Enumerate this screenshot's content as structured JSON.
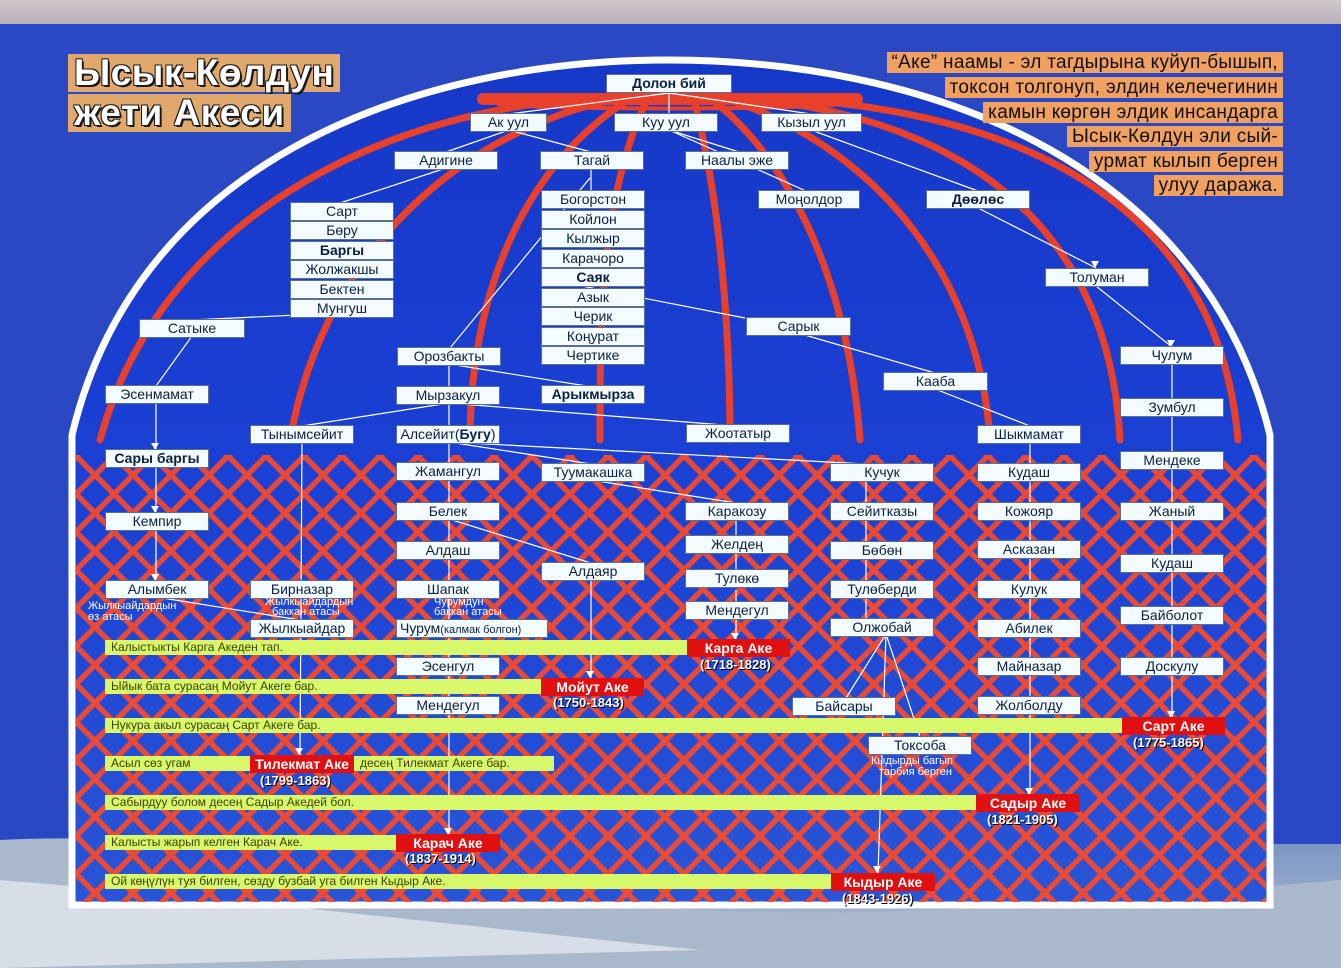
{
  "title": {
    "line1": "Ысык-Көлдун",
    "line2": "жети Акеси"
  },
  "quote": [
    "“Аке” наамы - эл тагдырына куйуп-бышып,",
    "токсон толгонуп, элдин келечегинин",
    "камын көргөн элдик инсандарга",
    "Ысык-Көлдун эли сый-",
    "урмат кылып берген",
    "улуу даража."
  ],
  "colors": {
    "lattice": "#ff3a1a",
    "node_bg": "#f4fbff",
    "saying_bg": "#d6f86a",
    "ake_bg": "#e01010"
  },
  "nodes": {
    "dolon": "Долон бий",
    "ak_uul": "Ак уул",
    "kuu_uul": "Куу уул",
    "kyzyl_uul": "Кызыл уул",
    "adigine": "Адигине",
    "tagai": "Тагай",
    "naaly": "Наалы эже",
    "monoldor": "Моңолдор",
    "doolos": "Дөөлөс",
    "sart": "Сарт",
    "boru": "Бөру",
    "bargy": "Баргы",
    "zholzhakshy": "Жолжакшы",
    "bekten": "Бектен",
    "mungush": "Мунгуш",
    "bogorston": "Богорстон",
    "koilon": "Койлон",
    "kylzhyr": "Кылжыр",
    "karachoro": "Карачоро",
    "sayak": "Саяк",
    "azyk": "Азык",
    "cherik": "Черик",
    "konurat": "Коңурат",
    "chertike": "Чертике",
    "tolumaN": "Толуман",
    "satyke": "Сатыке",
    "saryk": "Сарык",
    "orozbakty": "Орозбакты",
    "chulum": "Чулум",
    "kaaba": "Кааба",
    "esenmamat": "Эсенмамат",
    "myrzakul": "Мырзакул",
    "arykmyrza": "Арыкмырза",
    "zumbul": "Зумбул",
    "tynymseit": "Тынымсейит",
    "alseit_a": "Алсейит(",
    "alseit_b": "Бугу",
    "alseit_c": ")",
    "zhootatyr": "Жоотатыр",
    "shykmamat": "Шыкмамат",
    "sary_bargy": "Сары баргы",
    "mendeke": "Мендеке",
    "zhamangul": "Жамангул",
    "tuumakashka": "Туумакашка",
    "kuchuk": "Кучук",
    "kudash1": "Кудаш",
    "kempir": "Кемпир",
    "belek": "Белек",
    "karakozu": "Каракозу",
    "seitkazy": "Сейитказы",
    "kozhoyar": "Кожояр",
    "zhanyy": "Жаный",
    "aldash": "Алдаш",
    "zhelden": "Желдең",
    "boben": "Бөбөн",
    "askazan": "Асказан",
    "kudash2": "Кудаш",
    "aldayar": "Алдаяр",
    "tuleko": "Тулөкө",
    "alymbek": "Алымбек",
    "birnazar": "Бирназар",
    "shapak": "Шапак",
    "tuloberdi": "Тулөберди",
    "kuluk": "Кулук",
    "mendegul1": "Мендегул",
    "baibolot": "Байболот",
    "zhylkyaidar": "Жылкыайдар",
    "churum_a": "Чурум",
    "churum_b": "(калмак болгон)",
    "olzhobai": "Олжобай",
    "abilek": "Абилек",
    "esengul": "Эсенгул",
    "mainazar": "Майназар",
    "doskulu": "Доскулу",
    "mendegul2": "Мендегул",
    "baisary": "Байсары",
    "zholboldu": "Жолболду",
    "toksoba": "Токсоба"
  },
  "notes": {
    "alymbek_1": "Жылкыайдардын",
    "alymbek_2": "өз атасы",
    "birnazar_1": "Жылкыайдардын",
    "birnazar_2": "баккан атасы",
    "shapak_1": "Чурумдун",
    "shapak_2": "баккан атасы",
    "toksoba_1": "Кыдырды багып",
    "toksoba_2": "тарбия берген"
  },
  "sayings": [
    {
      "text": "Калыстыкты Карга Акеден тап.",
      "ake": "Карга Аке",
      "years": "(1718-1828)"
    },
    {
      "text": "Ыйык бата сурасаң Мойут Акеге бар.",
      "ake": "Мойут Аке",
      "years": "(1750-1843)"
    },
    {
      "text": "Нукура акыл сурасаң Сарт Акеге бар.",
      "ake": "Сарт Аке",
      "years": "(1775-1865)"
    },
    {
      "text": "Асыл сөз угам",
      "ake": "Тилекмат Аке",
      "years": "(1799-1863)",
      "text2": "десең Тилекмат Акеге бар."
    },
    {
      "text": "Сабырдуу болом десең Садыр Акедей бол.",
      "ake": "Садыр Аке",
      "years": "(1821-1905)"
    },
    {
      "text": "Калысты жарып келген Карач Аке.",
      "ake": "Карач Аке",
      "years": "(1837-1914)"
    },
    {
      "text": "Ой көңүлүн туя билген, сөзду бузбай уга билген Кыдыр Аке.",
      "ake": "Кыдыр Аке",
      "years": "(1843-1926)"
    }
  ]
}
